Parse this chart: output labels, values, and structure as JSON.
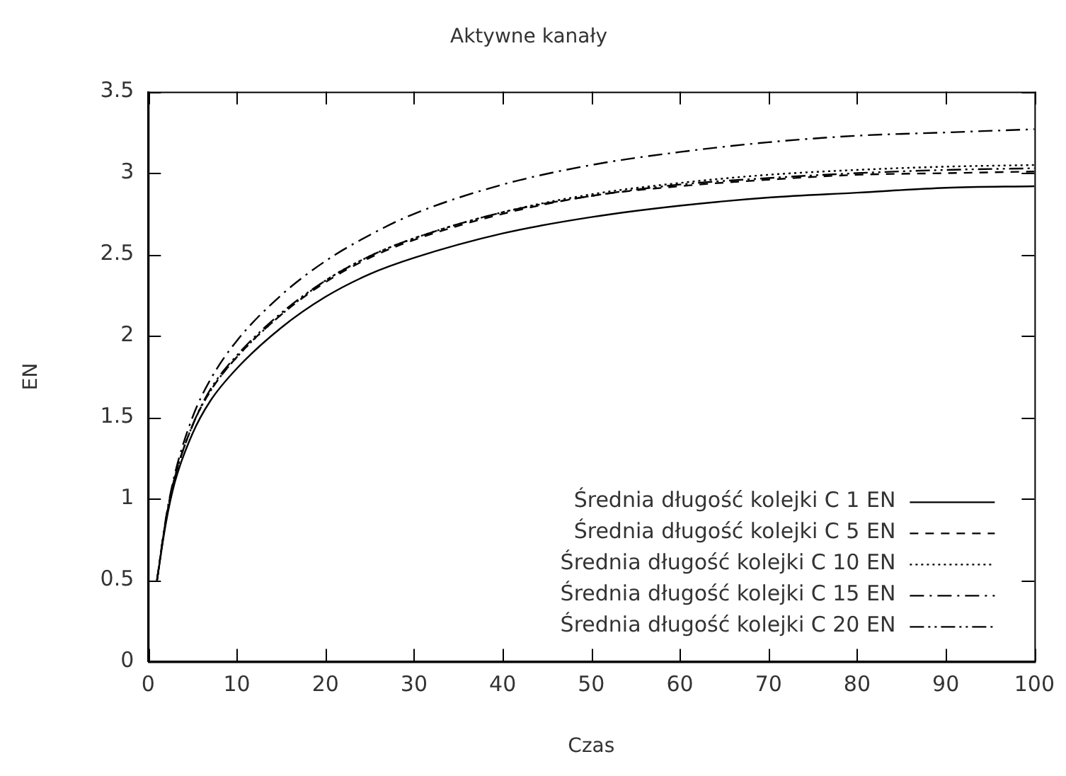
{
  "chart_data": {
    "type": "line",
    "title": "Aktywne kanały",
    "xlabel": "Czas",
    "ylabel": "EN",
    "x": [
      1,
      2,
      3,
      5,
      7,
      10,
      15,
      20,
      25,
      30,
      40,
      50,
      60,
      70,
      80,
      90,
      100
    ],
    "xlim": [
      0,
      100
    ],
    "xticks": [
      0,
      10,
      20,
      30,
      40,
      50,
      60,
      70,
      80,
      90,
      100
    ],
    "ylim": [
      0,
      3.5
    ],
    "yticks": [
      0,
      0.5,
      1,
      1.5,
      2,
      2.5,
      3,
      3.5
    ],
    "grid": false,
    "legend": "bottom right",
    "marker": "none",
    "series": [
      {
        "name": "Średnia długość kolejki C 1 EN",
        "color": "#000000",
        "line_style": "solid",
        "values": [
          0.5,
          0.85,
          1.1,
          1.4,
          1.6,
          1.8,
          2.05,
          2.24,
          2.38,
          2.48,
          2.63,
          2.73,
          2.8,
          2.85,
          2.88,
          2.91,
          2.92
        ]
      },
      {
        "name": "Średnia długość kolejki C 5 EN",
        "color": "#000000",
        "line_style": "dashed",
        "values": [
          0.5,
          0.87,
          1.13,
          1.45,
          1.66,
          1.87,
          2.13,
          2.33,
          2.48,
          2.59,
          2.75,
          2.86,
          2.92,
          2.96,
          2.99,
          3.0,
          3.01
        ]
      },
      {
        "name": "Średnia długość kolejki C 10 EN",
        "color": "#000000",
        "line_style": "dotted",
        "values": [
          0.5,
          0.87,
          1.13,
          1.45,
          1.66,
          1.87,
          2.13,
          2.34,
          2.49,
          2.6,
          2.76,
          2.87,
          2.94,
          2.99,
          3.02,
          3.04,
          3.05
        ]
      },
      {
        "name": "Średnia długość kolejki C 15 EN",
        "color": "#000000",
        "line_style": "dashdot",
        "values": [
          0.5,
          0.88,
          1.15,
          1.5,
          1.73,
          1.97,
          2.25,
          2.46,
          2.62,
          2.75,
          2.93,
          3.05,
          3.13,
          3.19,
          3.23,
          3.25,
          3.27
        ]
      },
      {
        "name": "Średnia długość kolejki C 20 EN",
        "color": "#000000",
        "line_style": "dashdotdot",
        "values": [
          0.5,
          0.87,
          1.13,
          1.45,
          1.67,
          1.88,
          2.14,
          2.34,
          2.49,
          2.6,
          2.76,
          2.86,
          2.93,
          2.97,
          3.0,
          3.02,
          3.03
        ]
      }
    ]
  }
}
